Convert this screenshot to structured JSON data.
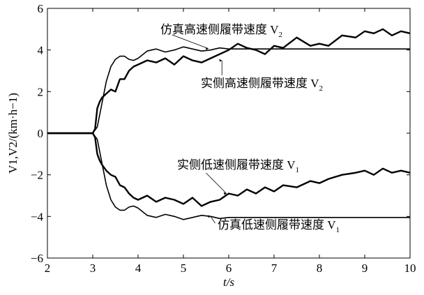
{
  "chart_data": {
    "type": "line",
    "xlabel": "t/s",
    "ylabel": "V1,V2/(km·h−1)",
    "xlim": [
      2,
      10
    ],
    "ylim": [
      -6,
      6
    ],
    "x_ticks": [
      "2",
      "3",
      "4",
      "5",
      "6",
      "7",
      "8",
      "9",
      "10"
    ],
    "y_ticks": [
      "6",
      "4",
      "2",
      "0",
      "−2",
      "−4",
      "−6"
    ],
    "grid": false,
    "series": [
      {
        "name": "仿真高速侧履带速度 V2",
        "color": "#000000",
        "x": [
          2.0,
          3.0,
          3.1,
          3.2,
          3.3,
          3.4,
          3.5,
          3.6,
          3.7,
          3.8,
          3.9,
          4.0,
          4.2,
          4.4,
          4.6,
          4.8,
          5.0,
          5.2,
          5.4,
          5.6,
          5.8,
          6.0,
          6.5,
          7.0,
          8.0,
          9.0,
          10.0
        ],
        "values": [
          0.0,
          0.0,
          0.3,
          1.4,
          2.5,
          3.2,
          3.55,
          3.7,
          3.7,
          3.55,
          3.5,
          3.6,
          3.95,
          4.05,
          3.9,
          4.0,
          4.15,
          4.05,
          3.95,
          4.0,
          4.1,
          4.05,
          4.05,
          4.05,
          4.05,
          4.05,
          4.05
        ]
      },
      {
        "name": "实侧高速侧履带速度 V2",
        "color": "#000000",
        "x": [
          2.0,
          3.0,
          3.05,
          3.1,
          3.15,
          3.2,
          3.3,
          3.4,
          3.5,
          3.6,
          3.7,
          3.8,
          3.9,
          4.0,
          4.2,
          4.4,
          4.6,
          4.8,
          5.0,
          5.2,
          5.4,
          5.6,
          5.8,
          6.0,
          6.2,
          6.4,
          6.6,
          6.8,
          7.0,
          7.2,
          7.5,
          7.8,
          8.0,
          8.2,
          8.5,
          8.8,
          9.0,
          9.2,
          9.4,
          9.6,
          9.8,
          10.0
        ],
        "values": [
          0.0,
          0.0,
          0.2,
          1.2,
          1.5,
          1.7,
          1.9,
          2.1,
          2.0,
          2.6,
          2.6,
          3.0,
          3.2,
          3.3,
          3.5,
          3.4,
          3.6,
          3.3,
          3.7,
          3.5,
          3.4,
          3.6,
          3.8,
          4.0,
          4.3,
          4.1,
          4.0,
          3.8,
          4.2,
          4.1,
          4.6,
          4.2,
          4.3,
          4.2,
          4.7,
          4.6,
          4.9,
          4.8,
          5.0,
          4.7,
          4.9,
          4.8
        ]
      },
      {
        "name": "仿真低速侧履带速度 V1",
        "color": "#000000",
        "x": [
          2.0,
          3.0,
          3.1,
          3.2,
          3.3,
          3.4,
          3.5,
          3.6,
          3.7,
          3.8,
          3.9,
          4.0,
          4.2,
          4.4,
          4.6,
          4.8,
          5.0,
          5.2,
          5.4,
          5.6,
          5.8,
          6.0,
          6.5,
          7.0,
          8.0,
          9.0,
          10.0
        ],
        "values": [
          0.0,
          0.0,
          -0.3,
          -1.4,
          -2.5,
          -3.2,
          -3.55,
          -3.7,
          -3.7,
          -3.55,
          -3.5,
          -3.6,
          -3.95,
          -4.05,
          -3.9,
          -4.0,
          -4.15,
          -4.05,
          -3.95,
          -4.0,
          -4.1,
          -4.05,
          -4.05,
          -4.05,
          -4.05,
          -4.05,
          -4.05
        ]
      },
      {
        "name": "实侧低速侧履带速度 V1",
        "color": "#000000",
        "x": [
          2.0,
          3.0,
          3.05,
          3.1,
          3.15,
          3.2,
          3.3,
          3.4,
          3.5,
          3.6,
          3.7,
          3.8,
          3.9,
          4.0,
          4.2,
          4.4,
          4.6,
          4.8,
          5.0,
          5.2,
          5.4,
          5.6,
          5.8,
          6.0,
          6.2,
          6.4,
          6.6,
          6.8,
          7.0,
          7.2,
          7.5,
          7.8,
          8.0,
          8.2,
          8.5,
          8.8,
          9.0,
          9.2,
          9.4,
          9.6,
          9.8,
          10.0
        ],
        "values": [
          0.0,
          0.0,
          -0.2,
          -1.0,
          -1.3,
          -1.5,
          -1.8,
          -2.0,
          -2.1,
          -2.5,
          -2.6,
          -2.9,
          -3.1,
          -3.2,
          -3.0,
          -3.3,
          -3.1,
          -3.2,
          -3.4,
          -3.1,
          -3.5,
          -3.3,
          -3.2,
          -2.9,
          -3.0,
          -2.7,
          -2.9,
          -2.6,
          -2.8,
          -2.5,
          -2.6,
          -2.3,
          -2.4,
          -2.2,
          -2.0,
          -1.9,
          -1.8,
          -2.0,
          -1.7,
          -1.9,
          -1.8,
          -1.9
        ]
      }
    ],
    "annotations": [
      {
        "text": "仿真高速侧履带速度 V",
        "sub": "2",
        "series": 0
      },
      {
        "text": "实侧高速侧履带速度  V",
        "sub": "2",
        "series": 1
      },
      {
        "text": "实侧低速侧履带速度  V",
        "sub": "1",
        "series": 3
      },
      {
        "text": "仿真低速侧履带速度  V",
        "sub": "1",
        "series": 2
      }
    ]
  }
}
